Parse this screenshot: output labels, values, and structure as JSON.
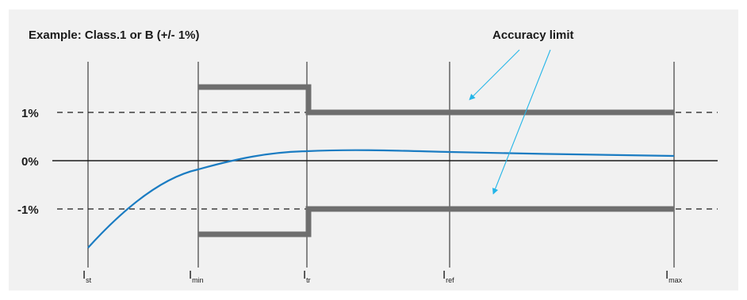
{
  "diagram": {
    "title": "Example: Class.1 or B (+/- 1%)",
    "annotation": "Accuracy limit",
    "y_ticks": [
      "1%",
      "0%",
      "-1%"
    ],
    "x_ticks": [
      {
        "main": "I",
        "sub": "st"
      },
      {
        "main": "I",
        "sub": "min"
      },
      {
        "main": "I",
        "sub": "tr"
      },
      {
        "main": "I",
        "sub": "ref"
      },
      {
        "main": "I",
        "sub": "max"
      }
    ],
    "colors": {
      "background": "#f1f1f1",
      "limit_line": "#6e6e6e",
      "error_curve": "#1b7cc2",
      "arrow": "#23b5e8",
      "axis": "#1a1a1a"
    }
  }
}
